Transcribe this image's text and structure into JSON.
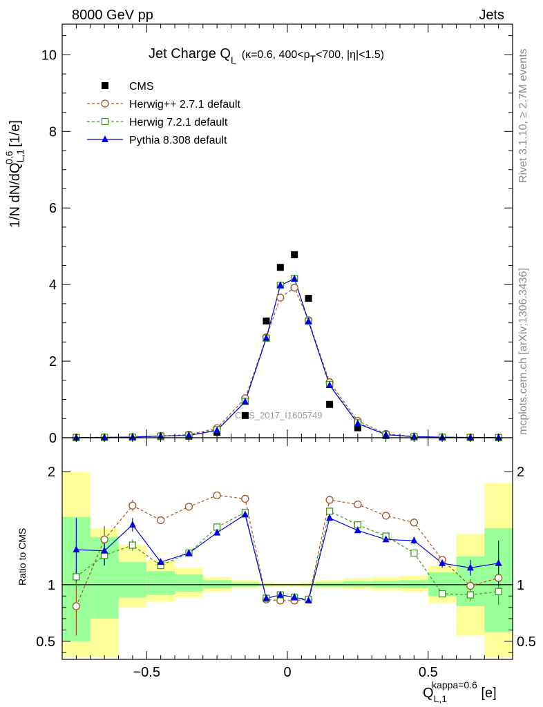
{
  "header": {
    "left": "8000 GeV pp",
    "right": "Jets"
  },
  "side_text": {
    "rivet": "Rivet 3.1.10, ≥ 2.7M events",
    "mcplots": "mcplots.cern.ch [arXiv:1306.3436]"
  },
  "watermark": "CMS_2017_I1605749",
  "colors": {
    "cms": "#000000",
    "herwigpp": "#a0521e",
    "herwig7": "#3f9b19",
    "pythia": "#0000e6",
    "band_yellow": "#ffff99",
    "band_green": "#99ff99"
  },
  "chart_data": [
    {
      "type": "scatter",
      "title": "Jet Charge Q_L (κ=0.6, 400<p_T<700, |η|<1.5)",
      "title_parts": {
        "main": "Jet Charge Q",
        "main_sub": "L",
        "cond_a": "(κ=0.6, 400<p",
        "cond_sub": "T",
        "cond_b": "<700, |η|<1.5)"
      },
      "ylabel": "1/N dN/dQ_{L,1}^{0.6} [1/e]",
      "ylabel_parts": {
        "a": "1/N dN/dQ",
        "sub": "L,1",
        "sup": "0.6",
        "b": " [1/e]"
      },
      "xlim": [
        -0.8,
        0.8
      ],
      "ylim": [
        0,
        10.8
      ],
      "yticks": [
        0,
        2,
        4,
        6,
        8,
        10
      ],
      "x": [
        -0.75,
        -0.65,
        -0.55,
        -0.45,
        -0.35,
        -0.25,
        -0.15,
        -0.075,
        -0.025,
        0.025,
        0.075,
        0.15,
        0.25,
        0.35,
        0.45,
        0.55,
        0.65,
        0.75
      ],
      "series": [
        {
          "name": "CMS",
          "key": "cms",
          "marker": "square-filled",
          "values": [
            0.004,
            0.008,
            0.012,
            0.03,
            0.04,
            0.14,
            0.58,
            3.05,
            4.45,
            4.78,
            3.64,
            0.87,
            0.26,
            0.06,
            0.02,
            0.012,
            0.008,
            0.004
          ]
        },
        {
          "name": "Herwig++ 2.7.1 default",
          "key": "herwigpp",
          "marker": "circle-open",
          "values": [
            0.004,
            0.011,
            0.019,
            0.047,
            0.08,
            0.25,
            1.03,
            2.62,
            3.66,
            3.92,
            3.07,
            1.45,
            0.44,
            0.1,
            0.03,
            0.015,
            0.008,
            0.004
          ]
        },
        {
          "name": "Herwig 7.2.1 default",
          "key": "herwig7",
          "marker": "square-open",
          "values": [
            0.004,
            0.01,
            0.016,
            0.04,
            0.065,
            0.21,
            0.95,
            2.6,
            3.98,
            4.16,
            3.04,
            1.39,
            0.39,
            0.08,
            0.027,
            0.013,
            0.007,
            0.004
          ]
        },
        {
          "name": "Pythia 8.308 default",
          "key": "pythia",
          "marker": "triangle-filled",
          "values": [
            0.005,
            0.01,
            0.018,
            0.045,
            0.06,
            0.19,
            0.94,
            2.6,
            3.98,
            4.15,
            3.04,
            1.37,
            0.37,
            0.08,
            0.027,
            0.014,
            0.008,
            0.004
          ]
        }
      ],
      "legend": "top-left"
    },
    {
      "type": "scatter",
      "ylabel": "Ratio to CMS",
      "xlabel": "Q_{L,1}^{kappa=0.6} [e]",
      "xlabel_parts": {
        "a": "Q",
        "sub": "L,1",
        "sup": "kappa=0.6",
        "b": " [e]"
      },
      "xlim": [
        -0.8,
        0.8
      ],
      "ylim": [
        0.34,
        2.3
      ],
      "xticks": [
        -0.5,
        0,
        0.5
      ],
      "xtick_labels": [
        "−0.5",
        "0",
        "0.5"
      ],
      "yticks": [
        0.5,
        1,
        2
      ],
      "ytick_labels": [
        "0.5",
        "1",
        "2"
      ],
      "bins": [
        [
          -0.8,
          -0.7
        ],
        [
          -0.7,
          -0.6
        ],
        [
          -0.6,
          -0.5
        ],
        [
          -0.5,
          -0.4
        ],
        [
          -0.4,
          -0.3
        ],
        [
          -0.3,
          -0.2
        ],
        [
          -0.2,
          -0.1
        ],
        [
          -0.1,
          -0.05
        ],
        [
          -0.05,
          0
        ],
        [
          0,
          0.05
        ],
        [
          0.05,
          0.1
        ],
        [
          0.1,
          0.2
        ],
        [
          0.2,
          0.3
        ],
        [
          0.3,
          0.4
        ],
        [
          0.4,
          0.5
        ],
        [
          0.5,
          0.6
        ],
        [
          0.6,
          0.7
        ],
        [
          0.7,
          0.8
        ]
      ],
      "band_yellow": [
        [
          0.36,
          2.0
        ],
        [
          0.36,
          1.5
        ],
        [
          0.8,
          1.35
        ],
        [
          0.85,
          1.22
        ],
        [
          0.89,
          1.15
        ],
        [
          0.94,
          1.07
        ],
        [
          0.97,
          1.04
        ],
        [
          0.98,
          1.02
        ],
        [
          0.985,
          1.015
        ],
        [
          0.985,
          1.015
        ],
        [
          0.98,
          1.02
        ],
        [
          0.97,
          1.04
        ],
        [
          0.96,
          1.06
        ],
        [
          0.95,
          1.07
        ],
        [
          0.94,
          1.08
        ],
        [
          0.84,
          1.17
        ],
        [
          0.55,
          1.45
        ],
        [
          0.36,
          1.9
        ]
      ],
      "band_green": [
        [
          0.5,
          1.6
        ],
        [
          0.7,
          1.42
        ],
        [
          0.89,
          1.2
        ],
        [
          0.91,
          1.12
        ],
        [
          0.94,
          1.09
        ],
        [
          0.97,
          1.04
        ],
        [
          0.985,
          1.02
        ],
        [
          0.99,
          1.01
        ],
        [
          0.992,
          1.008
        ],
        [
          0.992,
          1.008
        ],
        [
          0.99,
          1.01
        ],
        [
          0.985,
          1.02
        ],
        [
          0.98,
          1.03
        ],
        [
          0.975,
          1.035
        ],
        [
          0.97,
          1.04
        ],
        [
          0.9,
          1.11
        ],
        [
          0.81,
          1.25
        ],
        [
          0.58,
          1.5
        ]
      ],
      "x": [
        -0.75,
        -0.65,
        -0.55,
        -0.45,
        -0.35,
        -0.25,
        -0.15,
        -0.075,
        -0.025,
        0.025,
        0.075,
        0.15,
        0.25,
        0.35,
        0.45,
        0.55,
        0.65,
        0.75
      ],
      "series": [
        {
          "name": "Herwig++ 2.7.1 default",
          "key": "herwigpp",
          "marker": "circle-open",
          "values": [
            0.81,
            1.4,
            1.7,
            1.57,
            1.69,
            1.79,
            1.76,
            0.87,
            0.86,
            0.86,
            0.87,
            1.75,
            1.71,
            1.61,
            1.55,
            1.22,
            0.99,
            1.06
          ],
          "err": [
            0.26,
            0.12,
            0.05,
            0.03,
            0.02,
            0.02,
            0.01,
            0.01,
            0.01,
            0.01,
            0.01,
            0.01,
            0.02,
            0.02,
            0.03,
            0.03,
            0.06,
            0.12
          ]
        },
        {
          "name": "Herwig 7.2.1 default",
          "key": "herwig7",
          "marker": "square-open",
          "values": [
            1.07,
            1.26,
            1.35,
            1.17,
            1.28,
            1.51,
            1.64,
            0.88,
            0.91,
            0.89,
            0.87,
            1.65,
            1.53,
            1.43,
            1.28,
            0.92,
            0.91,
            0.94
          ],
          "err": [
            0.1,
            0.08,
            0.05,
            0.03,
            0.02,
            0.02,
            0.01,
            0.01,
            0.01,
            0.01,
            0.01,
            0.01,
            0.02,
            0.02,
            0.02,
            0.03,
            0.05,
            0.12
          ]
        },
        {
          "name": "Pythia 8.308 default",
          "key": "pythia",
          "marker": "triangle-filled",
          "values": [
            1.31,
            1.3,
            1.53,
            1.2,
            1.28,
            1.46,
            1.62,
            0.88,
            0.91,
            0.89,
            0.86,
            1.59,
            1.48,
            1.4,
            1.39,
            1.19,
            1.15,
            1.19
          ],
          "err": [
            0.28,
            0.13,
            0.06,
            0.03,
            0.02,
            0.02,
            0.01,
            0.01,
            0.01,
            0.01,
            0.01,
            0.01,
            0.02,
            0.02,
            0.03,
            0.04,
            0.07,
            0.2
          ]
        }
      ]
    }
  ]
}
